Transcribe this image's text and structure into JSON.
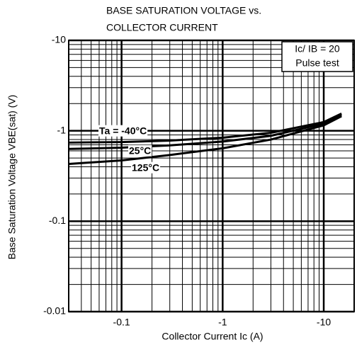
{
  "chart_data": {
    "type": "line",
    "title": [
      "BASE SATURATION VOLTAGE vs.",
      "COLLECTOR CURRENT"
    ],
    "x_label": "Collector Current  Ic  (A)",
    "y_label": "Base Saturation Voltage  VBE(sat)  (V)",
    "legend_text": [
      "Ic/ IB = 20",
      "Pulse test"
    ],
    "x": [
      -0.03,
      -0.1,
      -0.3,
      -1,
      -3,
      -10,
      -15
    ],
    "series": [
      {
        "name": "Ta = -40°C",
        "color": "#000000",
        "values": [
          -0.74,
          -0.75,
          -0.78,
          -0.84,
          -0.95,
          -1.25,
          -1.55
        ]
      },
      {
        "name": "25°C",
        "color": "#000000",
        "values": [
          -0.63,
          -0.65,
          -0.69,
          -0.76,
          -0.88,
          -1.2,
          -1.5
        ]
      },
      {
        "name": "125°C",
        "color": "#000000",
        "values": [
          -0.43,
          -0.47,
          -0.54,
          -0.64,
          -0.8,
          -1.15,
          -1.45
        ]
      }
    ],
    "xlim": [
      -0.03,
      -20
    ],
    "ylim": [
      -0.01,
      -10
    ],
    "xticks": [
      -0.1,
      -1,
      -10
    ],
    "yticks": [
      -0.01,
      -0.1,
      -1,
      -10
    ],
    "log_scale": true,
    "grid": true
  }
}
